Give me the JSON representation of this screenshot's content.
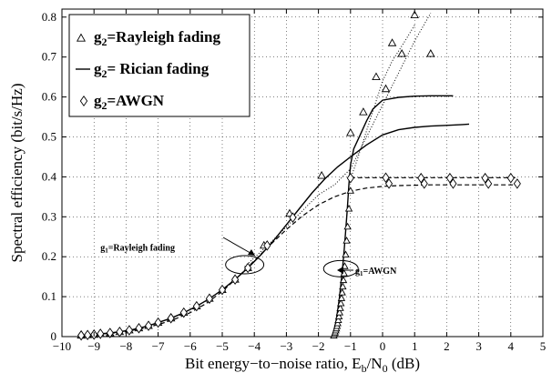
{
  "chart_data": {
    "type": "line",
    "xlabel_parts": [
      "Bit energy−to−noise ratio, E",
      "b",
      "/N",
      "0",
      " (dB)"
    ],
    "ylabel": "Spectral efficiency  (bit/s/Hz)",
    "xlim": [
      -10,
      5
    ],
    "ylim": [
      0,
      0.82
    ],
    "x_ticks": [
      -10,
      -9,
      -8,
      -7,
      -6,
      -5,
      -4,
      -3,
      -2,
      -1,
      0,
      1,
      2,
      3,
      4,
      5
    ],
    "x_tick_labels": [
      "−10",
      "−9",
      "−8",
      "−7",
      "−6",
      "−5",
      "−4",
      "−3",
      "−2",
      "−1",
      "0",
      "1",
      "2",
      "3",
      "4",
      "5"
    ],
    "y_ticks": [
      0,
      0.1,
      0.2,
      0.3,
      0.4,
      0.5,
      0.6,
      0.7,
      0.8
    ],
    "y_tick_labels": [
      "0",
      "0.1",
      "0.2",
      "0.3",
      "0.4",
      "0.5",
      "0.6",
      "0.7",
      "0.8"
    ],
    "grid": true,
    "legend": {
      "position": "top-left",
      "entries": [
        {
          "prefix": "g",
          "sub": "2",
          "text": "=Rayleigh fading",
          "marker": "triangle"
        },
        {
          "prefix": "g",
          "sub": "2",
          "text": "= Rician fading",
          "marker": "line"
        },
        {
          "prefix": "g",
          "sub": "2",
          "text": "=AWGN",
          "marker": "diamond"
        }
      ]
    },
    "annotations": [
      {
        "prefix": "g",
        "sub": "1",
        "text": "=Rayleigh fading",
        "ellipse_center": [
          -4.3,
          0.18
        ],
        "text_anchor": [
          -8.8,
          0.215
        ],
        "arrow_to": [
          -4.6,
          0.195
        ]
      },
      {
        "prefix": "g",
        "sub": "1",
        "text": "=AWGN",
        "ellipse_center": [
          -1.3,
          0.17
        ],
        "text_anchor": [
          -0.6,
          0.155
        ],
        "arrow_to": [
          -0.95,
          0.165
        ]
      }
    ],
    "series": [
      {
        "group": "g1=Rayleigh fading",
        "style": "solid",
        "x": [
          -9.4,
          -9.2,
          -9.0,
          -8.8,
          -8.5,
          -8.2,
          -7.9,
          -7.6,
          -7.3,
          -7.0,
          -6.6,
          -6.2,
          -5.8,
          -5.4,
          -5.0,
          -4.6,
          -4.2,
          -3.8,
          -3.4,
          -3.0,
          -2.6,
          -2.2,
          -1.8,
          -1.4,
          -1.0,
          -0.5,
          0.0,
          0.5,
          1.0,
          1.5,
          2.0,
          2.5,
          2.7
        ],
        "y": [
          0.003,
          0.004,
          0.005,
          0.007,
          0.009,
          0.012,
          0.016,
          0.021,
          0.027,
          0.035,
          0.046,
          0.06,
          0.076,
          0.095,
          0.117,
          0.143,
          0.172,
          0.204,
          0.24,
          0.28,
          0.32,
          0.36,
          0.395,
          0.425,
          0.45,
          0.48,
          0.505,
          0.518,
          0.524,
          0.527,
          0.529,
          0.531,
          0.532
        ]
      },
      {
        "group": "g1=Rayleigh fading",
        "style": "dashed",
        "x": [
          -9.4,
          -9.0,
          -8.5,
          -8.0,
          -7.5,
          -7.0,
          -6.5,
          -6.0,
          -5.5,
          -5.0,
          -4.5,
          -4.0,
          -3.5,
          -3.0,
          -2.5,
          -2.0,
          -1.5,
          -1.0,
          -0.5,
          0.0,
          0.5,
          1.0,
          1.5,
          2.0,
          3.0,
          4.0,
          4.2
        ],
        "y": [
          0.003,
          0.005,
          0.008,
          0.013,
          0.02,
          0.03,
          0.043,
          0.06,
          0.083,
          0.113,
          0.15,
          0.19,
          0.23,
          0.268,
          0.302,
          0.33,
          0.35,
          0.364,
          0.372,
          0.376,
          0.378,
          0.379,
          0.38,
          0.38,
          0.38,
          0.38,
          0.38
        ]
      },
      {
        "group": "g1=Rayleigh fading",
        "style": "dotted",
        "x": [
          -4.3,
          -3.5,
          -3.0,
          -2.5,
          -2.0,
          -1.5,
          -1.0,
          -0.5,
          0.0,
          0.5,
          1.0,
          1.5
        ],
        "y": [
          0.175,
          0.235,
          0.275,
          0.315,
          0.355,
          0.38,
          0.42,
          0.5,
          0.58,
          0.66,
          0.74,
          0.81
        ]
      },
      {
        "group": "g1=AWGN",
        "style": "solid",
        "x": [
          -1.55,
          -1.5,
          -1.45,
          -1.4,
          -1.35,
          -1.3,
          -1.25,
          -1.2,
          -1.15,
          -1.1,
          -1.05,
          -1.0,
          -0.9,
          -0.7,
          -0.5,
          -0.3,
          0.0,
          0.5,
          1.0,
          1.5,
          2.0,
          2.2
        ],
        "y": [
          0.0,
          0.02,
          0.04,
          0.065,
          0.095,
          0.13,
          0.17,
          0.215,
          0.265,
          0.32,
          0.38,
          0.43,
          0.47,
          0.505,
          0.54,
          0.57,
          0.592,
          0.599,
          0.602,
          0.603,
          0.603,
          0.603
        ]
      },
      {
        "group": "g1=AWGN",
        "style": "dotted",
        "x": [
          -1.0,
          -0.8,
          -0.6,
          -0.4,
          -0.2,
          0.0,
          0.3,
          0.7,
          1.0
        ],
        "y": [
          0.395,
          0.44,
          0.49,
          0.54,
          0.59,
          0.64,
          0.69,
          0.74,
          0.78
        ]
      },
      {
        "group": "g1=AWGN",
        "style": "dashed",
        "x": [
          -1.0,
          -0.5,
          0.0,
          1.0,
          2.0,
          3.0,
          4.0,
          4.2
        ],
        "y": [
          0.398,
          0.398,
          0.398,
          0.398,
          0.398,
          0.398,
          0.398,
          0.398
        ]
      }
    ],
    "markers": {
      "triangle": {
        "x": [
          -9.4,
          -9.2,
          -9.0,
          -8.8,
          -8.5,
          -8.2,
          -7.9,
          -7.6,
          -7.3,
          -7.0,
          -6.6,
          -6.2,
          -5.8,
          -5.4,
          -5.0,
          -4.6,
          -4.2,
          -3.7,
          -2.9,
          -1.9,
          -1.0,
          -0.6,
          -0.2,
          0.1,
          0.3,
          0.6,
          1.0,
          1.5
        ],
        "y": [
          0.003,
          0.004,
          0.005,
          0.007,
          0.009,
          0.012,
          0.016,
          0.021,
          0.027,
          0.035,
          0.046,
          0.06,
          0.076,
          0.095,
          0.117,
          0.143,
          0.172,
          0.228,
          0.308,
          0.403,
          0.51,
          0.562,
          0.65,
          0.62,
          0.735,
          0.708,
          0.805,
          0.708
        ]
      },
      "triangle_awgn_branch": {
        "x": [
          -1.52,
          -1.5,
          -1.48,
          -1.46,
          -1.44,
          -1.42,
          -1.4,
          -1.38,
          -1.36,
          -1.34,
          -1.32,
          -1.3,
          -1.28,
          -1.26,
          -1.24,
          -1.22,
          -1.2,
          -1.18,
          -1.15,
          -1.12,
          -1.09,
          -1.05,
          -1.0
        ],
        "y": [
          0.002,
          0.006,
          0.01,
          0.015,
          0.02,
          0.026,
          0.033,
          0.041,
          0.05,
          0.06,
          0.071,
          0.083,
          0.096,
          0.11,
          0.125,
          0.141,
          0.158,
          0.176,
          0.205,
          0.24,
          0.275,
          0.32,
          0.365
        ]
      },
      "diamond": {
        "x": [
          -9.4,
          -9.2,
          -9.0,
          -8.8,
          -8.5,
          -8.2,
          -7.9,
          -7.6,
          -7.3,
          -7.0,
          -6.6,
          -6.2,
          -5.8,
          -5.4,
          -5.0,
          -4.6,
          -4.2,
          -3.6,
          -2.8,
          -1.0,
          0.1,
          0.2,
          1.2,
          1.3,
          2.1,
          2.2,
          3.2,
          3.3,
          4.0,
          4.2
        ],
        "y": [
          0.003,
          0.004,
          0.005,
          0.007,
          0.009,
          0.012,
          0.016,
          0.021,
          0.027,
          0.035,
          0.046,
          0.06,
          0.076,
          0.095,
          0.117,
          0.143,
          0.172,
          0.228,
          0.298,
          0.397,
          0.398,
          0.383,
          0.397,
          0.383,
          0.397,
          0.383,
          0.397,
          0.383,
          0.397,
          0.383
        ]
      }
    }
  }
}
